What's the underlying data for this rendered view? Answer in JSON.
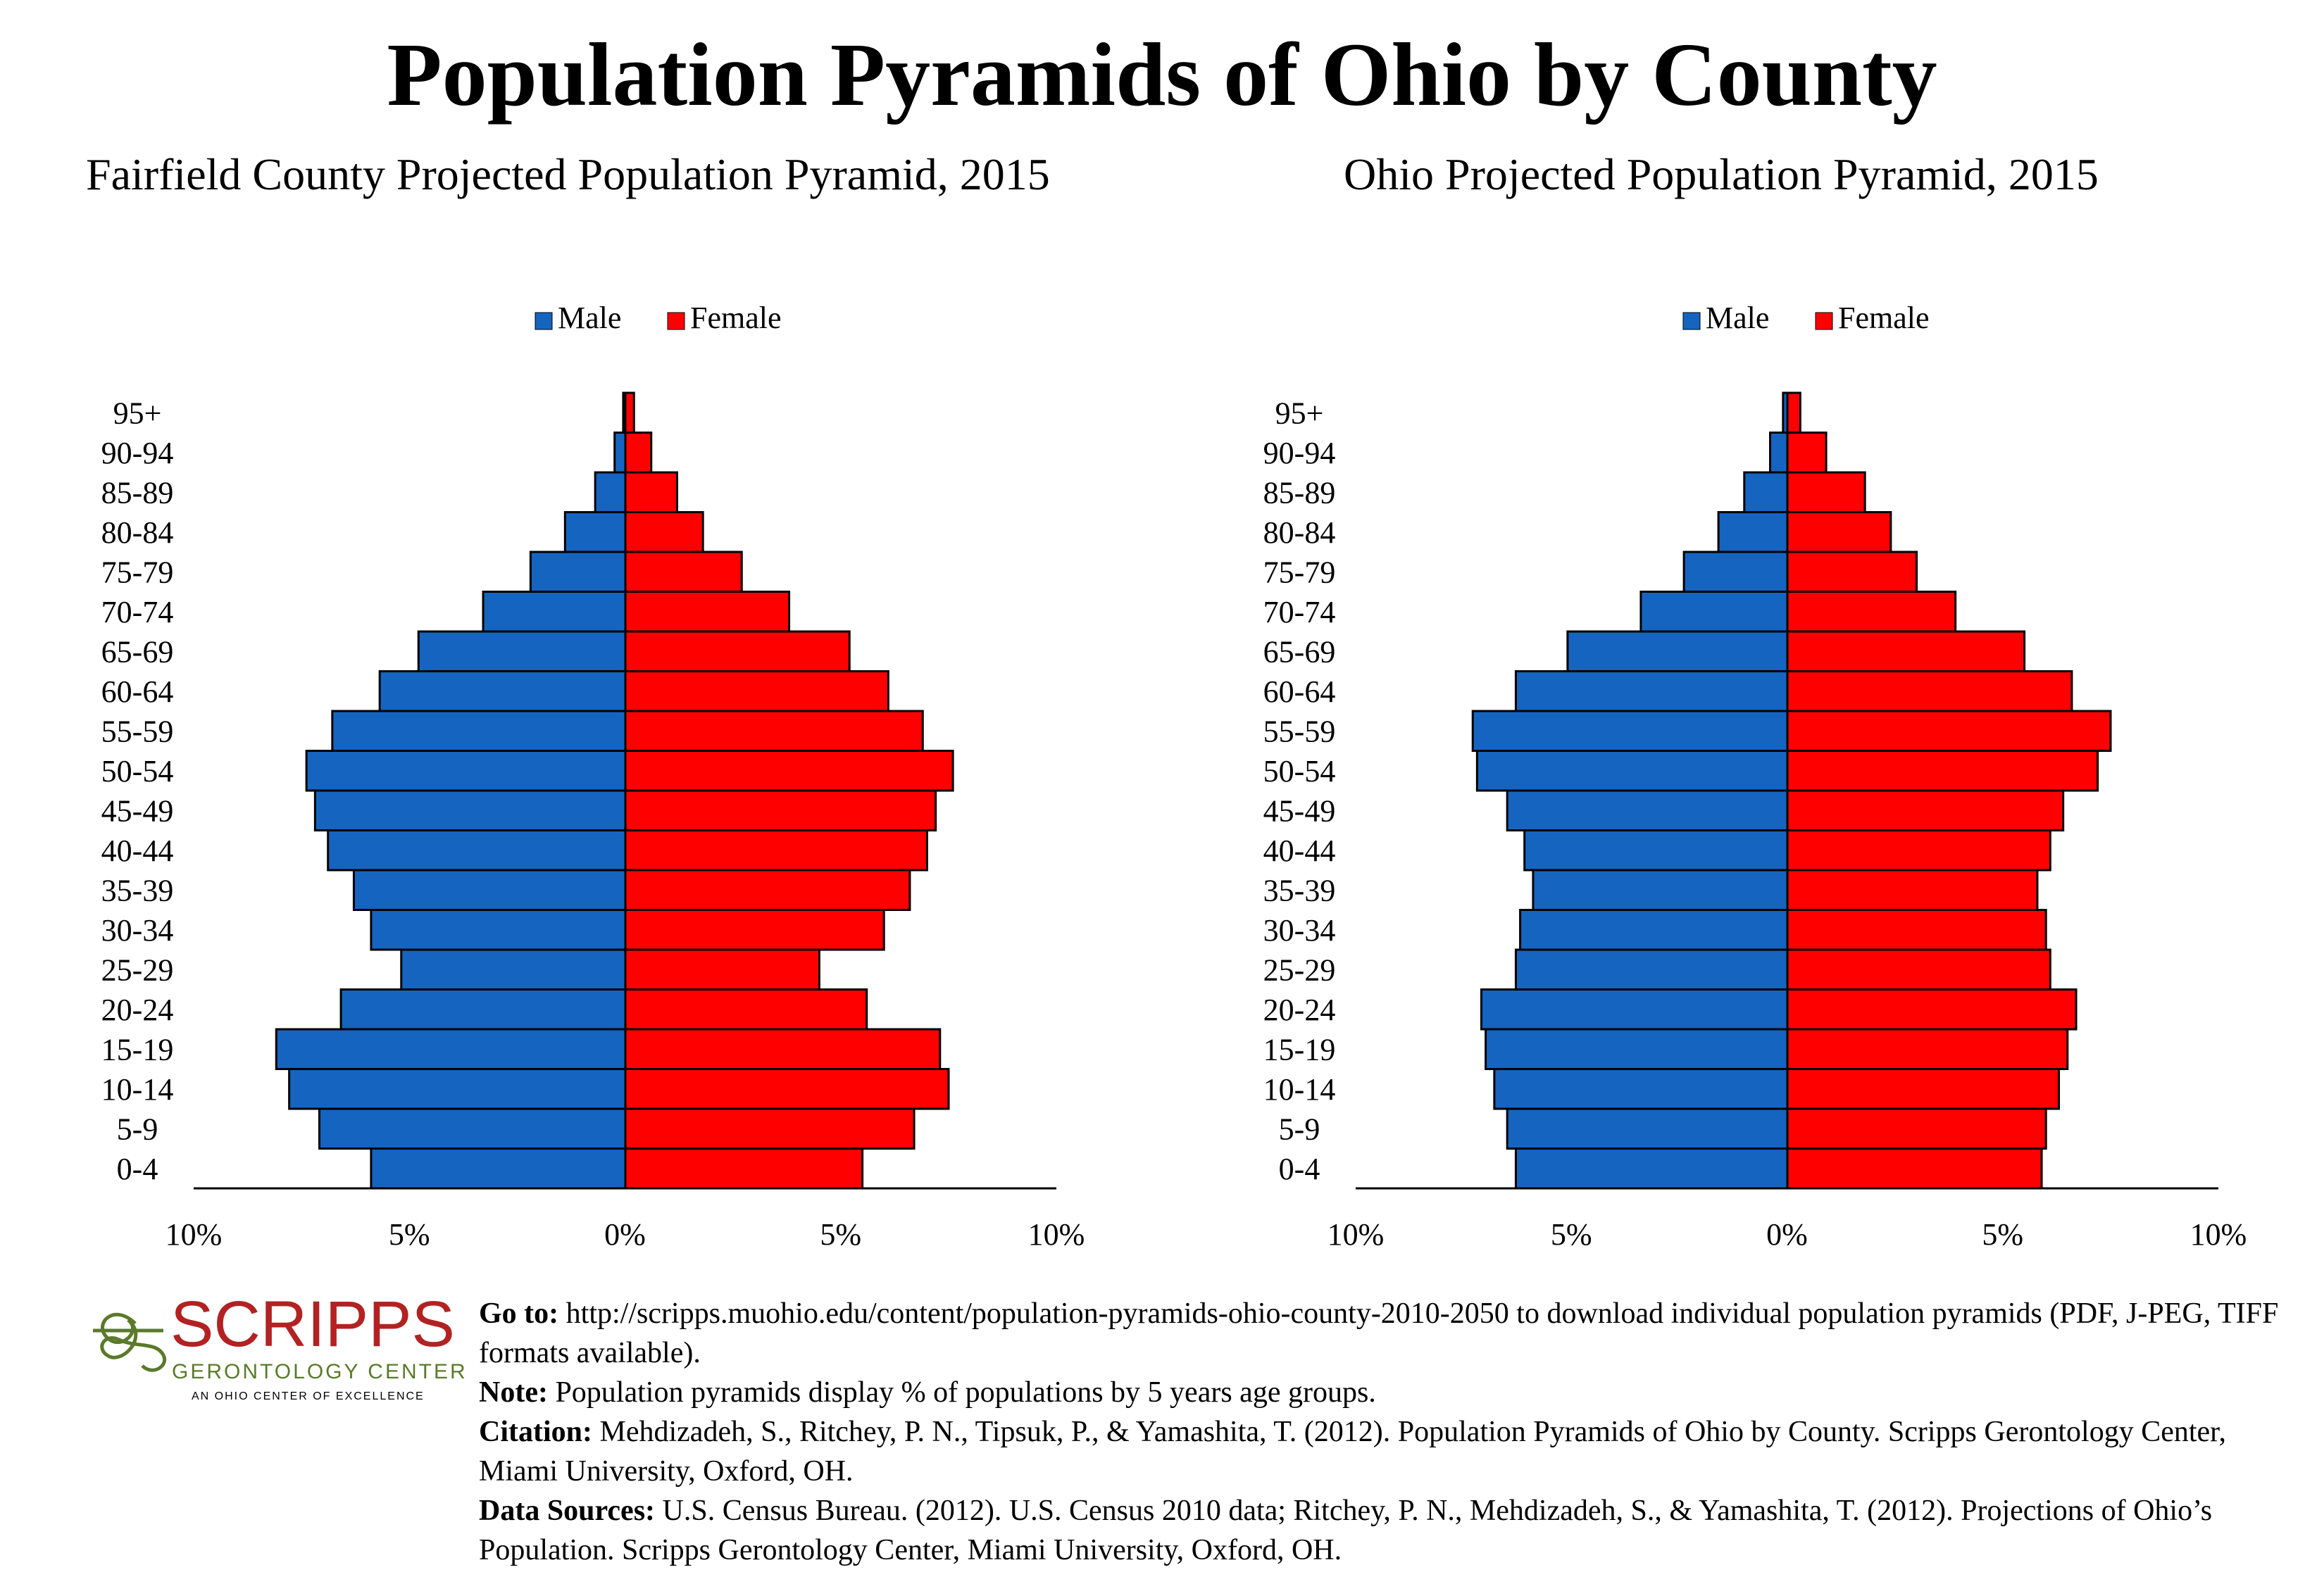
{
  "title": "Population Pyramids of Ohio by County",
  "charts": [
    {
      "subtitle": "Fairfield County Projected Population Pyramid, 2015",
      "legend": {
        "male": "Male",
        "female": "Female"
      }
    },
    {
      "subtitle": "Ohio Projected Population Pyramid, 2015",
      "legend": {
        "male": "Male",
        "female": "Female"
      }
    }
  ],
  "colors": {
    "male": "#1565C0",
    "female": "#FF0000",
    "outline": "#000000"
  },
  "chart_data": [
    {
      "type": "bar",
      "title": "Fairfield County Projected Population Pyramid, 2015",
      "categories": [
        "0-4",
        "5-9",
        "10-14",
        "15-19",
        "20-24",
        "25-29",
        "30-34",
        "35-39",
        "40-44",
        "45-49",
        "50-54",
        "55-59",
        "60-64",
        "65-69",
        "70-74",
        "75-79",
        "80-84",
        "85-89",
        "90-94",
        "95+"
      ],
      "series": [
        {
          "name": "Male",
          "values": [
            5.9,
            7.1,
            7.8,
            8.1,
            6.6,
            5.2,
            5.9,
            6.3,
            6.9,
            7.2,
            7.4,
            6.8,
            5.7,
            4.8,
            3.3,
            2.2,
            1.4,
            0.7,
            0.25,
            0.05
          ]
        },
        {
          "name": "Female",
          "values": [
            5.5,
            6.7,
            7.5,
            7.3,
            5.6,
            4.5,
            6.0,
            6.6,
            7.0,
            7.2,
            7.6,
            6.9,
            6.1,
            5.2,
            3.8,
            2.7,
            1.8,
            1.2,
            0.6,
            0.2
          ]
        }
      ],
      "x_ticks": [
        "10%",
        "5%",
        "0%",
        "5%",
        "10%"
      ],
      "xlim": [
        -10,
        10
      ],
      "legend": "top-center",
      "grid": false
    },
    {
      "type": "bar",
      "title": "Ohio Projected Population Pyramid, 2015",
      "categories": [
        "0-4",
        "5-9",
        "10-14",
        "15-19",
        "20-24",
        "25-29",
        "30-34",
        "35-39",
        "40-44",
        "45-49",
        "50-54",
        "55-59",
        "60-64",
        "65-69",
        "70-74",
        "75-79",
        "80-84",
        "85-89",
        "90-94",
        "95+"
      ],
      "series": [
        {
          "name": "Male",
          "values": [
            6.3,
            6.5,
            6.8,
            7.0,
            7.1,
            6.3,
            6.2,
            5.9,
            6.1,
            6.5,
            7.2,
            7.3,
            6.3,
            5.1,
            3.4,
            2.4,
            1.6,
            1.0,
            0.4,
            0.1
          ]
        },
        {
          "name": "Female",
          "values": [
            5.9,
            6.0,
            6.3,
            6.5,
            6.7,
            6.1,
            6.0,
            5.8,
            6.1,
            6.4,
            7.2,
            7.5,
            6.6,
            5.5,
            3.9,
            3.0,
            2.4,
            1.8,
            0.9,
            0.3
          ]
        }
      ],
      "x_ticks": [
        "10%",
        "5%",
        "0%",
        "5%",
        "10%"
      ],
      "xlim": [
        -10,
        10
      ],
      "legend": "top-center",
      "grid": false
    }
  ],
  "logo": {
    "name": "SCRIPPS",
    "line1": "GERONTOLOGY CENTER",
    "line2": "AN OHIO CENTER OF EXCELLENCE",
    "color_red": "#B22222",
    "color_green": "#5A7A2A"
  },
  "notes": {
    "goto_label": "Go to:",
    "goto_text": " http://scripps.muohio.edu/content/population-pyramids-ohio-county-2010-2050 to download individual population pyramids (PDF, J-PEG, TIFF formats available).",
    "note_label": "Note:",
    "note_text": " Population pyramids display % of populations by 5 years age groups.",
    "citation_label": "Citation:",
    "citation_text": " Mehdizadeh, S., Ritchey, P. N., Tipsuk, P., & Yamashita, T. (2012). Population Pyramids of Ohio by County. Scripps Gerontology Center, Miami University, Oxford, OH.",
    "sources_label": "Data Sources:",
    "sources_text": " U.S. Census Bureau. (2012). U.S. Census 2010 data; Ritchey, P. N., Mehdizadeh, S., & Yamashita, T. (2012). Projections of Ohio’s Population. Scripps Gerontology Center, Miami University, Oxford, OH."
  }
}
